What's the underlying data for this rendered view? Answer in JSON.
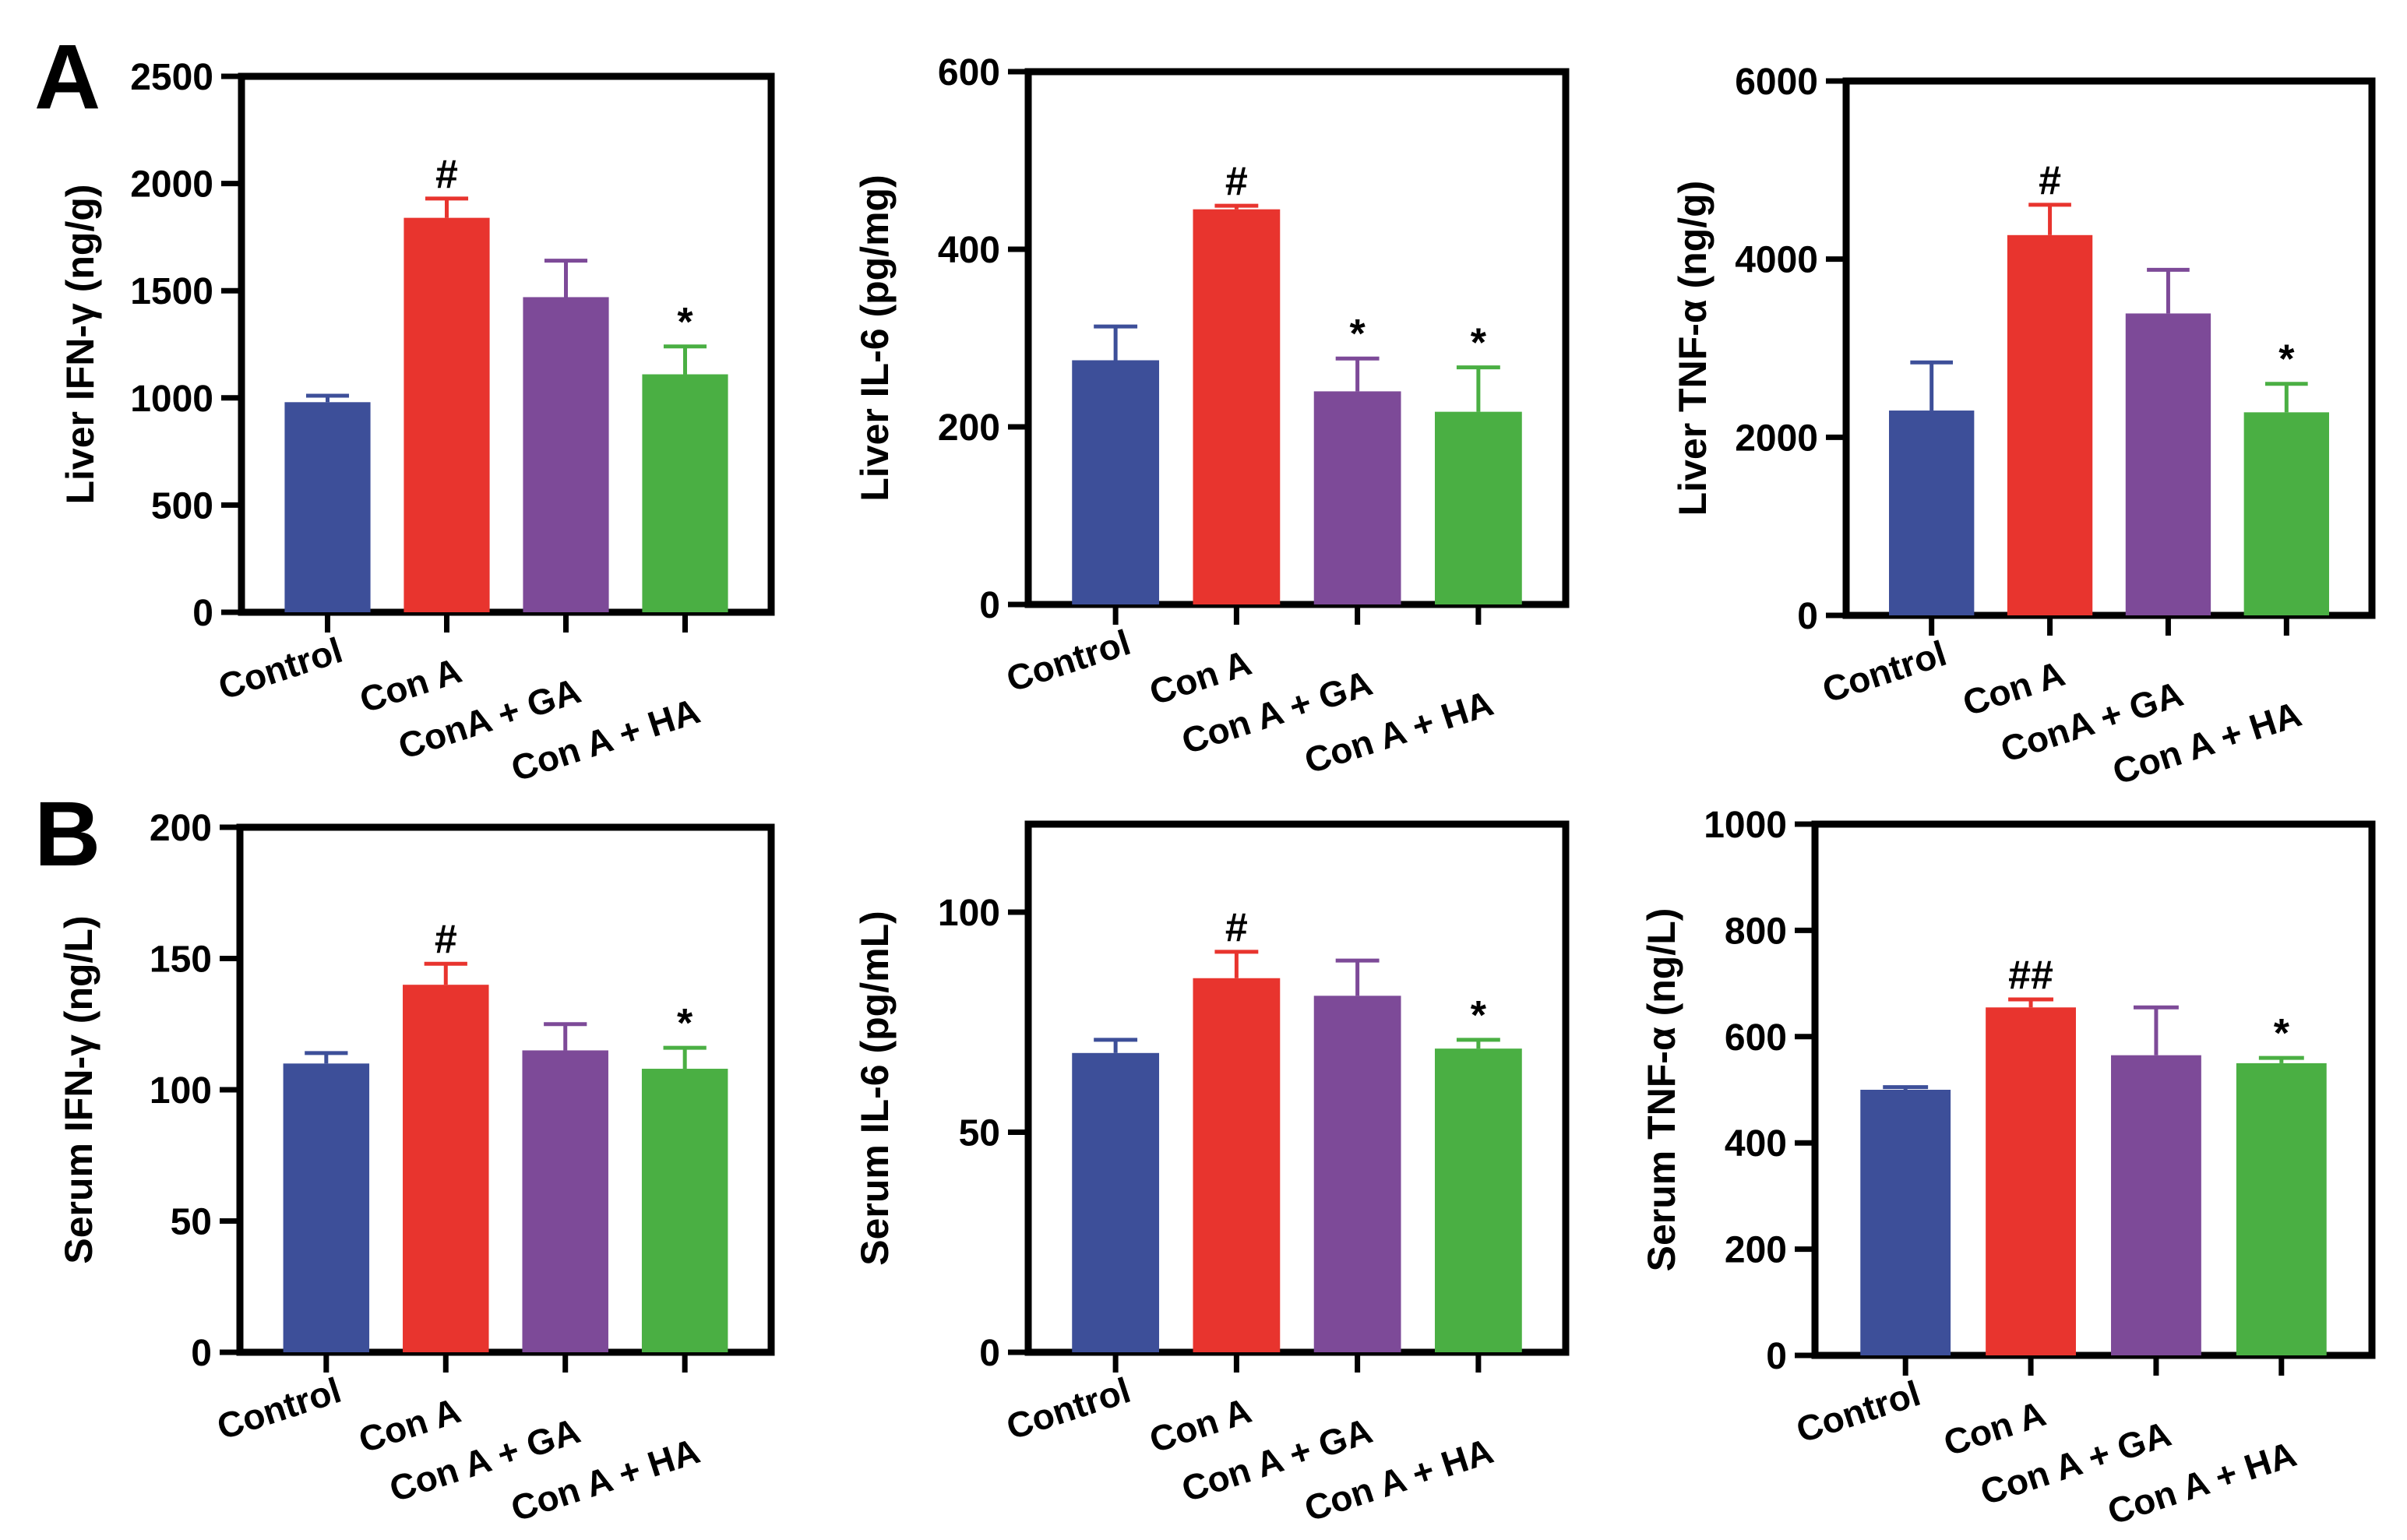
{
  "panels": [
    {
      "letter": "A"
    },
    {
      "letter": "B"
    }
  ],
  "colors": {
    "Control": "#3d4f99",
    "Con A": "#e8342e",
    "GA": "#7d4a98",
    "HA": "#4aaf43",
    "axis": "#000000"
  },
  "chart_data": [
    {
      "type": "bar",
      "panel": "A",
      "ylabel": "Liver IFN-γ (ng/g)",
      "categories": [
        "Control",
        "Con A",
        "ConA + GA",
        "Con A + HA"
      ],
      "values": [
        980,
        1840,
        1470,
        1110
      ],
      "errors": [
        30,
        90,
        170,
        130
      ],
      "annotations": [
        "",
        "#",
        "",
        "*"
      ],
      "ylim": [
        0,
        2500
      ],
      "yticks": [
        0,
        500,
        1000,
        1500,
        2000,
        2500
      ],
      "colors": [
        "#3d4f99",
        "#e8342e",
        "#7d4a98",
        "#4aaf43"
      ]
    },
    {
      "type": "bar",
      "panel": "A",
      "ylabel": "Liver IL-6 (pg/mg)",
      "categories": [
        "Control",
        "Con A",
        "Con A + GA",
        "Con A + HA"
      ],
      "values": [
        275,
        445,
        240,
        217
      ],
      "errors": [
        38,
        4,
        37,
        50
      ],
      "annotations": [
        "",
        "#",
        "*",
        "*"
      ],
      "ylim": [
        0,
        600
      ],
      "yticks": [
        0,
        200,
        400,
        600
      ],
      "colors": [
        "#3d4f99",
        "#e8342e",
        "#7d4a98",
        "#4aaf43"
      ]
    },
    {
      "type": "bar",
      "panel": "A",
      "ylabel": "Liver TNF-α (ng/g)",
      "categories": [
        "Control",
        "Con A",
        "ConA + GA",
        "Con A + HA"
      ],
      "values": [
        2300,
        4270,
        3390,
        2280
      ],
      "errors": [
        540,
        340,
        490,
        320
      ],
      "annotations": [
        "",
        "#",
        "",
        "*"
      ],
      "ylim": [
        0,
        6000
      ],
      "yticks": [
        0,
        2000,
        4000,
        6000
      ],
      "colors": [
        "#3d4f99",
        "#e8342e",
        "#7d4a98",
        "#4aaf43"
      ]
    },
    {
      "type": "bar",
      "panel": "B",
      "ylabel": "Serum IFN-γ (ng/L)",
      "categories": [
        "Control",
        "Con A",
        "Con A + GA",
        "Con A + HA"
      ],
      "values": [
        110,
        140,
        115,
        108
      ],
      "errors": [
        4,
        8,
        10,
        8
      ],
      "annotations": [
        "",
        "#",
        "",
        "*"
      ],
      "ylim": [
        0,
        200
      ],
      "yticks": [
        0,
        50,
        100,
        150,
        200
      ],
      "colors": [
        "#3d4f99",
        "#e8342e",
        "#7d4a98",
        "#4aaf43"
      ]
    },
    {
      "type": "bar",
      "panel": "B",
      "ylabel": "Serum IL-6 (pg/mL)",
      "categories": [
        "Control",
        "Con A",
        "Con A + GA",
        "Con A + HA"
      ],
      "values": [
        68,
        85,
        81,
        69
      ],
      "errors": [
        3,
        6,
        8,
        2
      ],
      "annotations": [
        "",
        "#",
        "",
        "*"
      ],
      "ylim": [
        0,
        100
      ],
      "yticks": [
        0,
        50,
        100
      ],
      "ymax": 120,
      "colors": [
        "#3d4f99",
        "#e8342e",
        "#7d4a98",
        "#4aaf43"
      ]
    },
    {
      "type": "bar",
      "panel": "B",
      "ylabel": "Serum TNF-α (ng/L)",
      "categories": [
        "Control",
        "Con A",
        "Con A + GA",
        "Con A + HA"
      ],
      "values": [
        500,
        655,
        565,
        550
      ],
      "errors": [
        5,
        15,
        90,
        10
      ],
      "annotations": [
        "",
        "##",
        "",
        "*"
      ],
      "ylim": [
        0,
        1000
      ],
      "yticks": [
        0,
        200,
        400,
        600,
        800,
        1000
      ],
      "colors": [
        "#3d4f99",
        "#e8342e",
        "#7d4a98",
        "#4aaf43"
      ]
    }
  ]
}
